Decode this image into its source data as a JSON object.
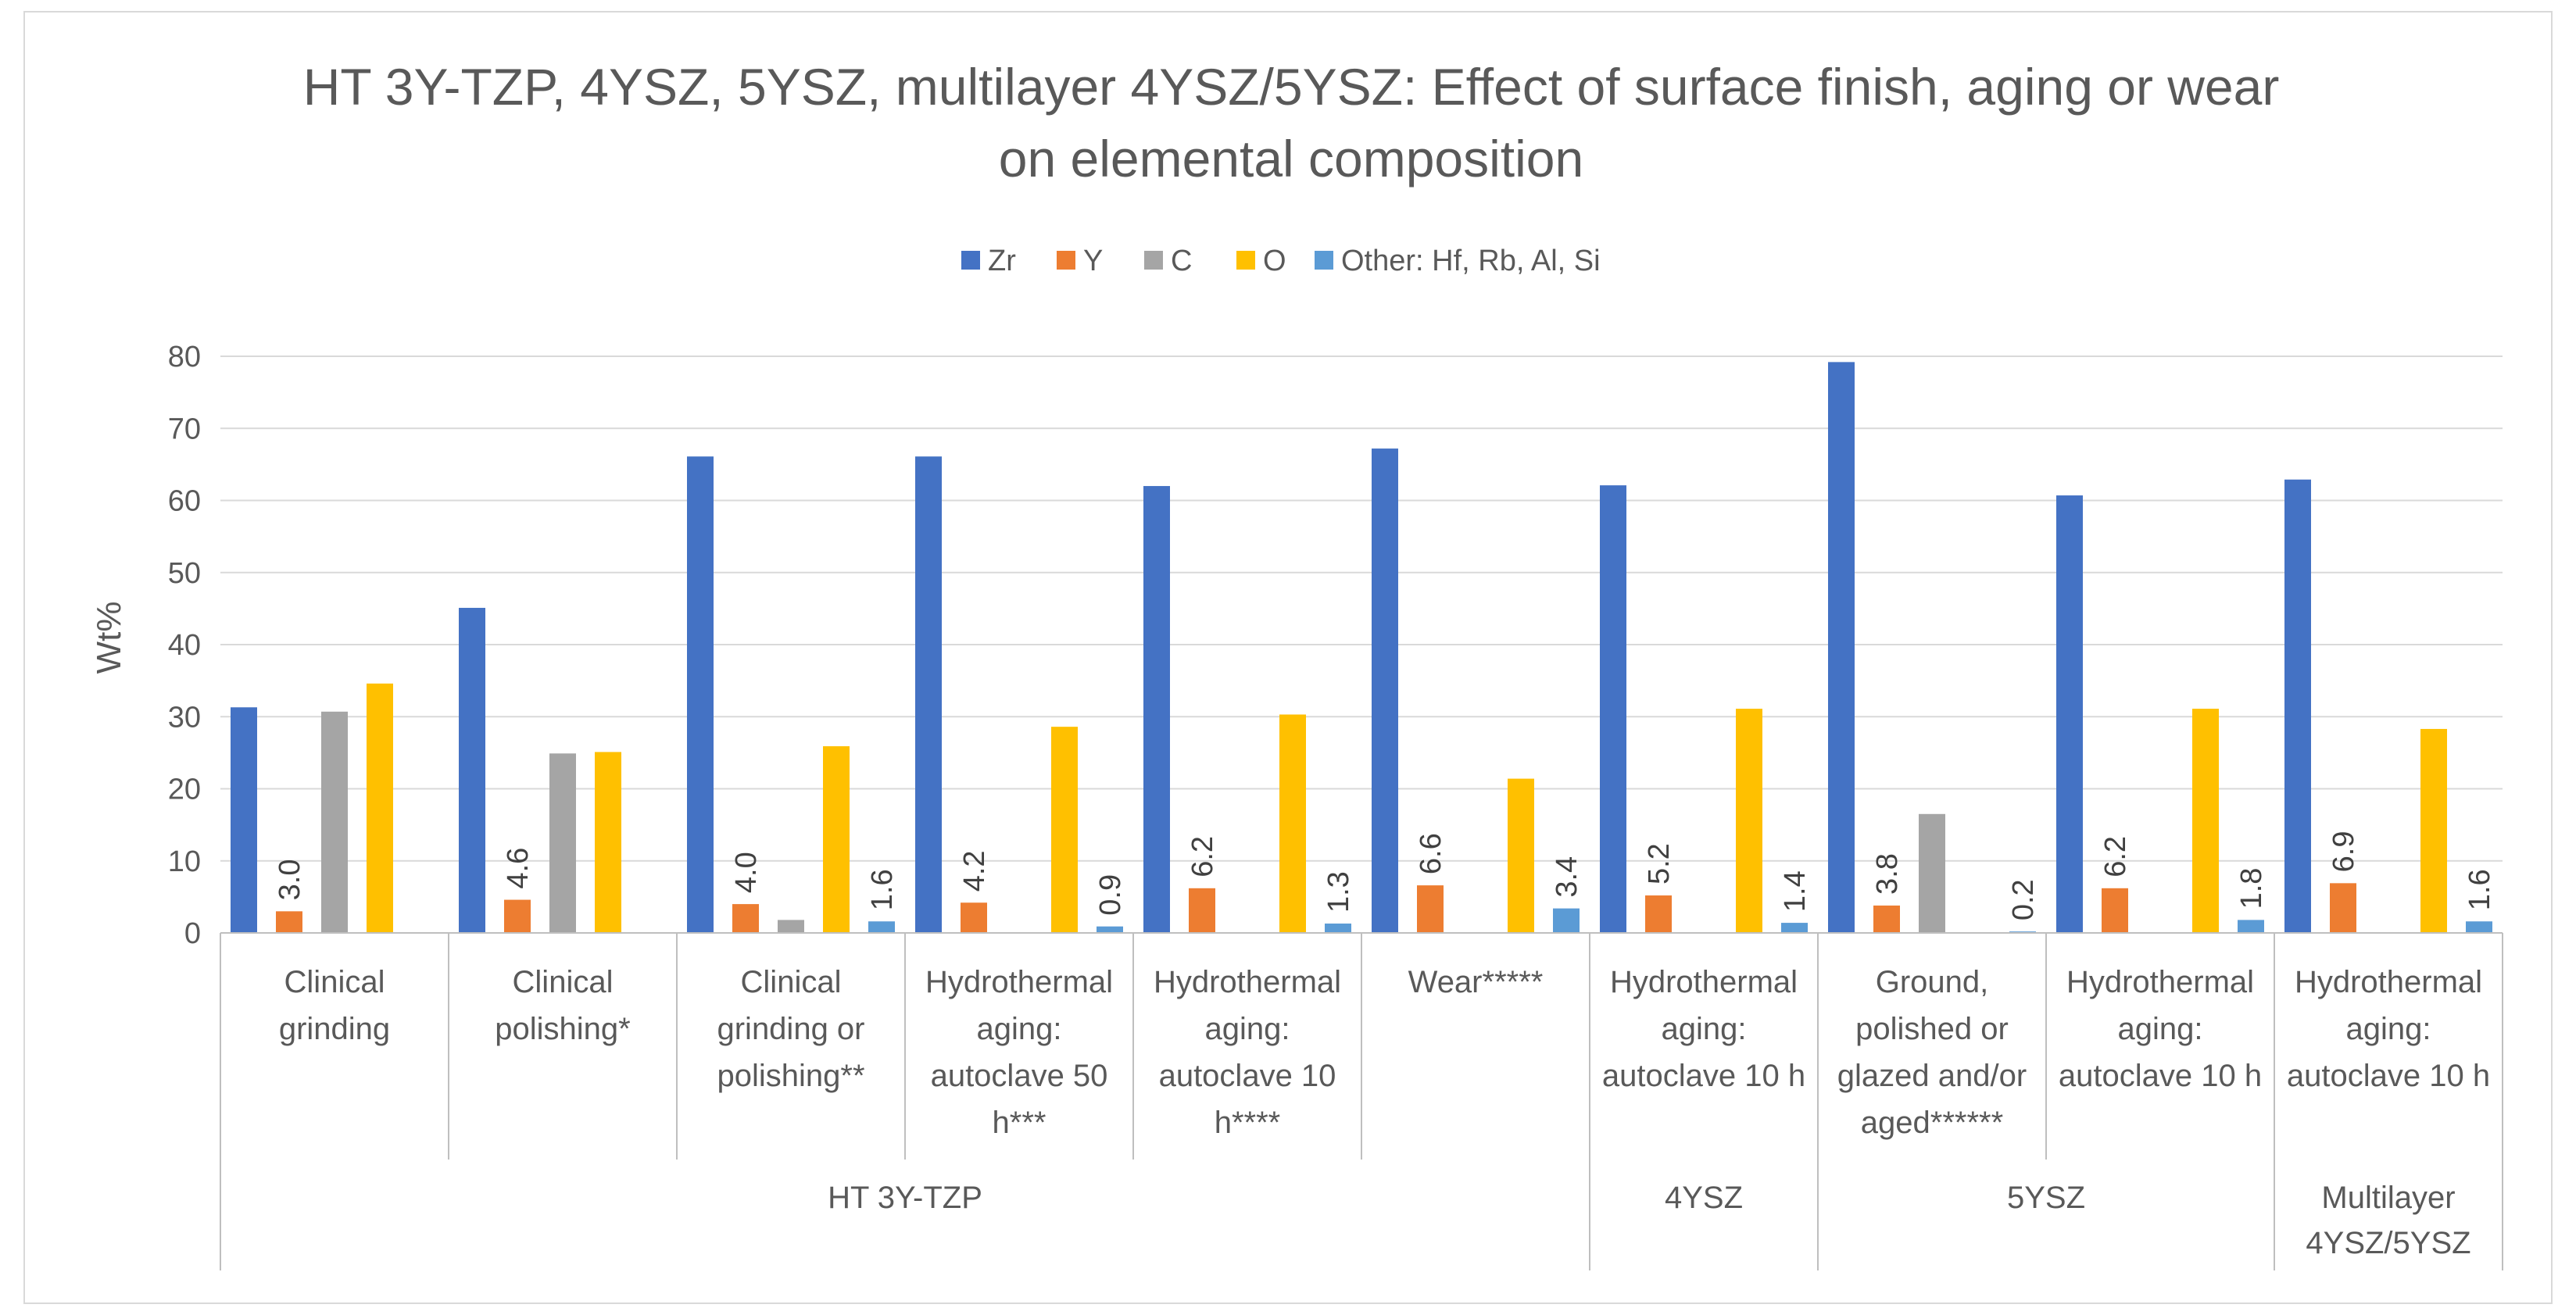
{
  "chart_data": {
    "type": "bar",
    "title_lines": [
      "HT 3Y-TZP, 4YSZ, 5YSZ, multilayer 4YSZ/5YSZ: Effect of surface finish, aging or wear",
      "on elemental composition"
    ],
    "ylabel": "Wt%",
    "ylim": [
      0,
      80
    ],
    "yticks": [
      0,
      10,
      20,
      30,
      40,
      50,
      60,
      70,
      80
    ],
    "grid": true,
    "legend_position": "top",
    "categories": [
      [
        "Clinical",
        "grinding"
      ],
      [
        "Clinical",
        "polishing*"
      ],
      [
        "Clinical",
        "grinding or",
        "polishing**"
      ],
      [
        "Hydrothermal",
        "aging:",
        "autoclave 50",
        "h***"
      ],
      [
        "Hydrothermal",
        "aging:",
        "autoclave 10",
        "h****"
      ],
      [
        "Wear*****"
      ],
      [
        "Hydrothermal",
        "aging:",
        "autoclave 10 h"
      ],
      [
        "Ground,",
        "polished or",
        "glazed and/or",
        "aged******"
      ],
      [
        "Hydrothermal",
        "aging:",
        "autoclave 10 h"
      ],
      [
        "Hydrothermal",
        "aging:",
        "autoclave 10 h"
      ]
    ],
    "groups": [
      {
        "label": [
          "HT 3Y-TZP"
        ],
        "start": 0,
        "end": 5
      },
      {
        "label": [
          "4YSZ"
        ],
        "start": 6,
        "end": 6
      },
      {
        "label": [
          "5YSZ"
        ],
        "start": 7,
        "end": 8
      },
      {
        "label": [
          "Multilayer",
          "4YSZ/5YSZ"
        ],
        "start": 9,
        "end": 9
      }
    ],
    "series": [
      {
        "name": "Zr",
        "color": "#4472c4",
        "values": [
          31.3,
          45.1,
          66.1,
          66.1,
          62.0,
          67.2,
          62.1,
          79.2,
          60.7,
          62.9
        ],
        "labels": [
          null,
          null,
          null,
          null,
          null,
          null,
          null,
          null,
          null,
          null
        ]
      },
      {
        "name": "Y",
        "color": "#ed7d31",
        "values": [
          3.0,
          4.6,
          4.0,
          4.2,
          6.2,
          6.6,
          5.2,
          3.8,
          6.2,
          6.9
        ],
        "labels": [
          "3.0",
          "4.6",
          "4.0",
          "4.2",
          "6.2",
          "6.6",
          "5.2",
          "3.8",
          "6.2",
          "6.9"
        ]
      },
      {
        "name": "C",
        "color": "#a5a5a5",
        "values": [
          30.7,
          24.9,
          1.8,
          null,
          null,
          null,
          null,
          16.5,
          null,
          null
        ],
        "labels": [
          null,
          null,
          null,
          null,
          null,
          null,
          null,
          null,
          null,
          null
        ]
      },
      {
        "name": "O",
        "color": "#ffc000",
        "values": [
          34.6,
          25.1,
          25.9,
          28.6,
          30.3,
          21.4,
          31.1,
          null,
          31.1,
          28.3
        ],
        "labels": [
          null,
          null,
          null,
          null,
          null,
          null,
          null,
          null,
          null,
          null
        ]
      },
      {
        "name": "Other: Hf, Rb, Al, Si",
        "color": "#5b9bd5",
        "values": [
          null,
          null,
          1.6,
          0.9,
          1.3,
          3.4,
          1.4,
          0.2,
          1.8,
          1.6
        ],
        "labels": [
          null,
          null,
          "1.6",
          "0.9",
          "1.3",
          "3.4",
          "1.4",
          "0.2",
          "1.8",
          "1.6"
        ]
      }
    ]
  },
  "colors": {
    "gridline": "#d9d9d9",
    "axis": "#bfbfbf",
    "text": "#595959"
  }
}
